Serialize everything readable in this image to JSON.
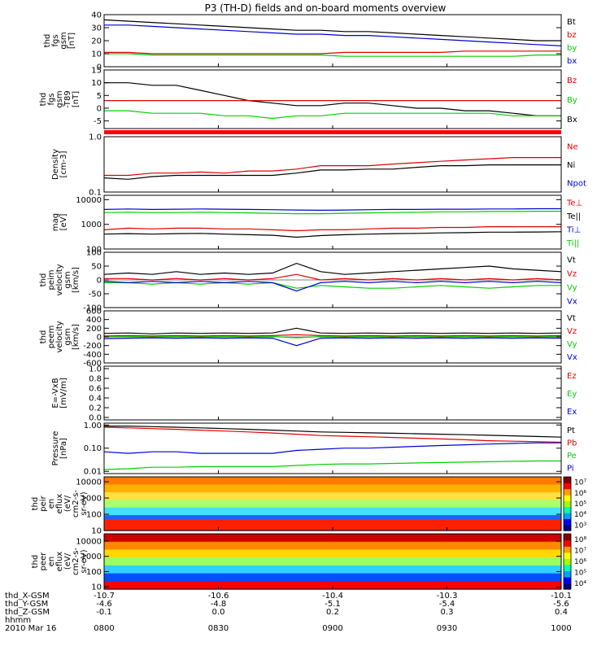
{
  "title": "P3 (TH-D) fields and on-board moments overview",
  "time_axis": {
    "ticks": [
      "0800",
      "0830",
      "0900",
      "0930",
      "1000"
    ],
    "date": "2010 Mar 16",
    "rows": [
      {
        "label": "thd_X-GSM",
        "values": [
          "-10.7",
          "-10.6",
          "-10.4",
          "-10.3",
          "-10.1"
        ]
      },
      {
        "label": "thd_Y-GSM",
        "values": [
          "-4.6",
          "-4.8",
          "-5.1",
          "-5.4",
          "-5.6"
        ]
      },
      {
        "label": "thd_Z-GSM",
        "values": [
          "-0.1",
          "0.0",
          "0.2",
          "0.3",
          "0.4"
        ]
      },
      {
        "label": "hhmm",
        "values": [
          "",
          "",
          "",
          "",
          ""
        ]
      }
    ]
  },
  "colors": {
    "black": "#000000",
    "red": "#e00000",
    "green": "#00d000",
    "blue": "#0000d0"
  },
  "chart_data": [
    {
      "type": "line",
      "id": "fgs",
      "ylabel": [
        "thd",
        "fgs",
        "gsm",
        "[nT]"
      ],
      "ylim": [
        0,
        40
      ],
      "yticks": [
        "0",
        "10",
        "20",
        "30",
        "40"
      ],
      "tick_values": [
        0,
        10,
        20,
        30,
        40
      ],
      "legend": [
        {
          "text": "Bt",
          "color": "black"
        },
        {
          "text": "bz",
          "color": "red"
        },
        {
          "text": "by",
          "color": "green"
        },
        {
          "text": "bx",
          "color": "blue"
        }
      ],
      "series": [
        {
          "name": "Bt",
          "color": "black",
          "values": [
            36,
            35,
            34,
            33,
            32,
            31,
            30,
            29,
            28,
            28,
            27,
            27,
            26,
            25,
            24,
            23,
            22,
            21,
            20,
            20
          ]
        },
        {
          "name": "bz",
          "color": "red",
          "values": [
            11,
            11,
            10,
            10,
            10,
            10,
            10,
            10,
            10,
            10,
            11,
            11,
            11,
            11,
            11,
            12,
            12,
            12,
            12,
            12
          ]
        },
        {
          "name": "by",
          "color": "green",
          "values": [
            10,
            10,
            9,
            9,
            9,
            9,
            9,
            9,
            9,
            9,
            8,
            8,
            8,
            8,
            8,
            8,
            8,
            8,
            9,
            9
          ]
        },
        {
          "name": "bx",
          "color": "blue",
          "values": [
            32,
            32,
            31,
            30,
            29,
            28,
            27,
            26,
            25,
            25,
            24,
            24,
            23,
            22,
            21,
            20,
            19,
            18,
            17,
            16
          ]
        }
      ]
    },
    {
      "type": "line",
      "id": "fgs_t89",
      "ylabel": [
        "thd",
        "fgs",
        "gsm",
        "-T89",
        "[nT]"
      ],
      "ylim": [
        -8,
        15
      ],
      "yticks": [
        "-5",
        "0",
        "5",
        "10",
        "15"
      ],
      "tick_values": [
        -5,
        0,
        5,
        10,
        15
      ],
      "legend": [
        {
          "text": "Bz",
          "color": "red"
        },
        {
          "text": "By",
          "color": "green"
        },
        {
          "text": "Bx",
          "color": "black"
        }
      ],
      "series": [
        {
          "name": "Bx",
          "color": "black",
          "values": [
            10,
            10,
            9,
            9,
            7,
            5,
            3,
            2,
            1,
            1,
            2,
            2,
            1,
            0,
            0,
            -1,
            -1,
            -2,
            -3,
            -3
          ]
        },
        {
          "name": "Bz",
          "color": "red",
          "values": [
            3,
            3,
            3,
            3,
            3,
            3,
            3,
            3,
            3,
            3,
            3,
            3,
            3,
            3,
            3,
            3,
            3,
            3,
            3,
            3
          ]
        },
        {
          "name": "By",
          "color": "green",
          "values": [
            -1,
            -1,
            -2,
            -2,
            -2,
            -3,
            -3,
            -4,
            -3,
            -3,
            -2,
            -2,
            -2,
            -2,
            -2,
            -2,
            -2,
            -3,
            -3,
            -3
          ]
        }
      ]
    },
    {
      "type": "line",
      "id": "density",
      "ylabel": [
        "Density",
        "[cm-3]"
      ],
      "ylog": true,
      "ylim": [
        0.1,
        1.0
      ],
      "yticks": [
        "0.1",
        "1.0"
      ],
      "tick_values": [
        0.1,
        1.0
      ],
      "legend": [
        {
          "text": "Ne",
          "color": "red"
        },
        {
          "text": "Ni",
          "color": "black"
        },
        {
          "text": "Npot",
          "color": "blue"
        }
      ],
      "series": [
        {
          "name": "Ne",
          "color": "red",
          "values": [
            0.2,
            0.2,
            0.22,
            0.22,
            0.23,
            0.22,
            0.24,
            0.24,
            0.26,
            0.3,
            0.3,
            0.3,
            0.32,
            0.34,
            0.36,
            0.38,
            0.4,
            0.42,
            0.42,
            0.42
          ]
        },
        {
          "name": "Ni",
          "color": "black",
          "values": [
            0.18,
            0.17,
            0.19,
            0.2,
            0.2,
            0.2,
            0.2,
            0.2,
            0.22,
            0.25,
            0.25,
            0.26,
            0.26,
            0.28,
            0.3,
            0.3,
            0.31,
            0.31,
            0.31,
            0.31
          ]
        }
      ]
    },
    {
      "type": "line",
      "id": "temp",
      "ylabel": [
        "mag",
        "[eV]"
      ],
      "ylog": true,
      "ylim": [
        100,
        15000
      ],
      "yticks": [
        "100",
        "1000",
        "10000"
      ],
      "tick_values": [
        100,
        1000,
        10000
      ],
      "legend": [
        {
          "text": "Te⊥",
          "color": "red"
        },
        {
          "text": "Te||",
          "color": "black"
        },
        {
          "text": "Ti⊥",
          "color": "blue"
        },
        {
          "text": "Ti||",
          "color": "green"
        }
      ],
      "series": [
        {
          "name": "Ti⊥",
          "color": "blue",
          "values": [
            4000,
            4200,
            4000,
            4100,
            4200,
            4100,
            4000,
            3900,
            3800,
            3700,
            3800,
            3900,
            4000,
            4000,
            4100,
            4100,
            4200,
            4200,
            4300,
            4300
          ]
        },
        {
          "name": "Ti||",
          "color": "green",
          "values": [
            3000,
            3100,
            3000,
            3000,
            3100,
            3000,
            2900,
            2800,
            2700,
            2700,
            2800,
            2900,
            3000,
            3100,
            3200,
            3200,
            3300,
            3300,
            3400,
            3400
          ]
        },
        {
          "name": "Te⊥",
          "color": "red",
          "values": [
            600,
            700,
            650,
            700,
            700,
            650,
            650,
            600,
            550,
            600,
            600,
            650,
            700,
            700,
            750,
            750,
            800,
            800,
            800,
            800
          ]
        },
        {
          "name": "Te||",
          "color": "black",
          "values": [
            400,
            420,
            400,
            420,
            430,
            400,
            380,
            360,
            300,
            350,
            380,
            400,
            420,
            430,
            450,
            460,
            480,
            480,
            490,
            500
          ]
        }
      ]
    },
    {
      "type": "line",
      "id": "vel_peim",
      "ylabel": [
        "thd",
        "peim",
        "velocity",
        "gsm",
        "[km/s]"
      ],
      "ylim": [
        -100,
        100
      ],
      "yticks": [
        "-100",
        "-50",
        "0",
        "50",
        "100"
      ],
      "tick_values": [
        -100,
        -50,
        0,
        50,
        100
      ],
      "legend": [
        {
          "text": "Vt",
          "color": "black"
        },
        {
          "text": "Vz",
          "color": "red"
        },
        {
          "text": "Vy",
          "color": "green"
        },
        {
          "text": "Vx",
          "color": "blue"
        }
      ],
      "series": [
        {
          "name": "Vt",
          "color": "black",
          "values": [
            20,
            25,
            20,
            30,
            20,
            25,
            20,
            25,
            60,
            30,
            20,
            25,
            30,
            35,
            40,
            45,
            50,
            40,
            35,
            30
          ]
        },
        {
          "name": "Vz",
          "color": "red",
          "values": [
            5,
            5,
            0,
            5,
            0,
            5,
            0,
            5,
            20,
            0,
            5,
            0,
            5,
            0,
            5,
            0,
            5,
            0,
            5,
            0
          ]
        },
        {
          "name": "Vy",
          "color": "green",
          "values": [
            -10,
            -10,
            -15,
            -10,
            -15,
            -10,
            -15,
            -10,
            -30,
            -20,
            -25,
            -30,
            -30,
            -25,
            -20,
            -25,
            -30,
            -25,
            -20,
            -20
          ]
        },
        {
          "name": "Vx",
          "color": "blue",
          "values": [
            -5,
            -10,
            -5,
            -10,
            -5,
            -10,
            -5,
            -10,
            -40,
            -10,
            -5,
            -10,
            -5,
            -10,
            -5,
            -10,
            -5,
            -10,
            -5,
            -10
          ]
        }
      ]
    },
    {
      "type": "line",
      "id": "vel_peem",
      "ylabel": [
        "thd",
        "peem",
        "velocity",
        "gsm",
        "[km/s]"
      ],
      "ylim": [
        -600,
        600
      ],
      "yticks": [
        "-600",
        "-400",
        "-200",
        "0",
        "200",
        "400",
        "600"
      ],
      "tick_values": [
        -600,
        -400,
        -200,
        0,
        200,
        400,
        600
      ],
      "legend": [
        {
          "text": "Vt",
          "color": "black"
        },
        {
          "text": "Vz",
          "color": "red"
        },
        {
          "text": "Vy",
          "color": "green"
        },
        {
          "text": "Vx",
          "color": "blue"
        }
      ],
      "series": [
        {
          "name": "Vt",
          "color": "black",
          "values": [
            80,
            90,
            70,
            90,
            80,
            90,
            80,
            90,
            200,
            90,
            80,
            90,
            80,
            90,
            80,
            90,
            80,
            90,
            80,
            90
          ]
        },
        {
          "name": "Vz",
          "color": "red",
          "values": [
            20,
            30,
            20,
            30,
            20,
            30,
            20,
            30,
            50,
            30,
            20,
            30,
            20,
            30,
            20,
            30,
            20,
            30,
            20,
            30
          ]
        },
        {
          "name": "Vy",
          "color": "green",
          "values": [
            0,
            10,
            0,
            10,
            0,
            10,
            0,
            10,
            -20,
            10,
            0,
            10,
            0,
            10,
            0,
            10,
            0,
            10,
            0,
            10
          ]
        },
        {
          "name": "Vx",
          "color": "blue",
          "values": [
            -40,
            -30,
            -20,
            -30,
            -20,
            -30,
            -20,
            -30,
            -200,
            -30,
            -20,
            -30,
            -20,
            -30,
            -20,
            -30,
            -20,
            -30,
            -20,
            -30
          ]
        }
      ]
    },
    {
      "type": "line",
      "id": "efield",
      "ylabel": [
        "E=-VxB",
        "[mV/m]"
      ],
      "ylim": [
        -0.05,
        1.05
      ],
      "yticks": [
        "0.0",
        "0.2",
        "0.4",
        "0.6",
        "0.8",
        "1.0"
      ],
      "tick_values": [
        0,
        0.2,
        0.4,
        0.6,
        0.8,
        1.0
      ],
      "legend": [
        {
          "text": "Ez",
          "color": "red"
        },
        {
          "text": "Ey",
          "color": "green"
        },
        {
          "text": "Ex",
          "color": "blue"
        }
      ],
      "series": []
    },
    {
      "type": "line",
      "id": "pressure",
      "ylabel": [
        "Pressure",
        "[nPa]"
      ],
      "ylog": true,
      "ylim": [
        0.008,
        1.2
      ],
      "yticks": [
        "0.01",
        "0.10",
        "1.00"
      ],
      "tick_values": [
        0.01,
        0.1,
        1.0
      ],
      "legend": [
        {
          "text": "Pt",
          "color": "black"
        },
        {
          "text": "Pb",
          "color": "red"
        },
        {
          "text": "Pe",
          "color": "green"
        },
        {
          "text": "Pi",
          "color": "blue"
        }
      ],
      "series": [
        {
          "name": "Pt",
          "color": "black",
          "values": [
            0.9,
            0.9,
            0.85,
            0.8,
            0.75,
            0.7,
            0.65,
            0.6,
            0.55,
            0.5,
            0.48,
            0.46,
            0.44,
            0.42,
            0.4,
            0.38,
            0.36,
            0.34,
            0.32,
            0.3
          ]
        },
        {
          "name": "Pb",
          "color": "red",
          "values": [
            0.8,
            0.75,
            0.7,
            0.65,
            0.6,
            0.55,
            0.5,
            0.45,
            0.4,
            0.35,
            0.33,
            0.31,
            0.29,
            0.27,
            0.25,
            0.23,
            0.21,
            0.2,
            0.19,
            0.18
          ]
        },
        {
          "name": "Pi",
          "color": "blue",
          "values": [
            0.07,
            0.06,
            0.07,
            0.07,
            0.06,
            0.06,
            0.06,
            0.06,
            0.08,
            0.09,
            0.1,
            0.1,
            0.11,
            0.12,
            0.13,
            0.14,
            0.15,
            0.16,
            0.17,
            0.17
          ]
        },
        {
          "name": "Pe",
          "color": "green",
          "values": [
            0.012,
            0.013,
            0.015,
            0.015,
            0.016,
            0.016,
            0.016,
            0.016,
            0.018,
            0.02,
            0.021,
            0.021,
            0.022,
            0.023,
            0.024,
            0.025,
            0.026,
            0.027,
            0.028,
            0.028
          ]
        }
      ]
    },
    {
      "type": "heatmap",
      "id": "peir",
      "ylabel": [
        "thd",
        "peir",
        "en",
        "eflux",
        "(eV/",
        "cm2-s-",
        "sr-eV)"
      ],
      "ylog": true,
      "ylim": [
        10,
        20000
      ],
      "yticks": [
        "10",
        "100",
        "1000",
        "10000"
      ],
      "tick_values": [
        10,
        100,
        1000,
        10000
      ],
      "colorbar": [
        "10³",
        "10⁴",
        "10⁵",
        "10⁶",
        "10⁷"
      ]
    },
    {
      "type": "heatmap",
      "id": "peer",
      "ylabel": [
        "thd",
        "peer",
        "en",
        "eflux",
        "(eV/",
        "cm2-s-",
        "sr-eV)"
      ],
      "ylog": true,
      "ylim": [
        7,
        30000
      ],
      "yticks": [
        "10",
        "100",
        "1000",
        "10000"
      ],
      "tick_values": [
        10,
        100,
        1000,
        10000
      ],
      "colorbar": [
        "10⁴",
        "10⁵",
        "10⁶",
        "10⁷",
        "10⁸"
      ]
    }
  ]
}
